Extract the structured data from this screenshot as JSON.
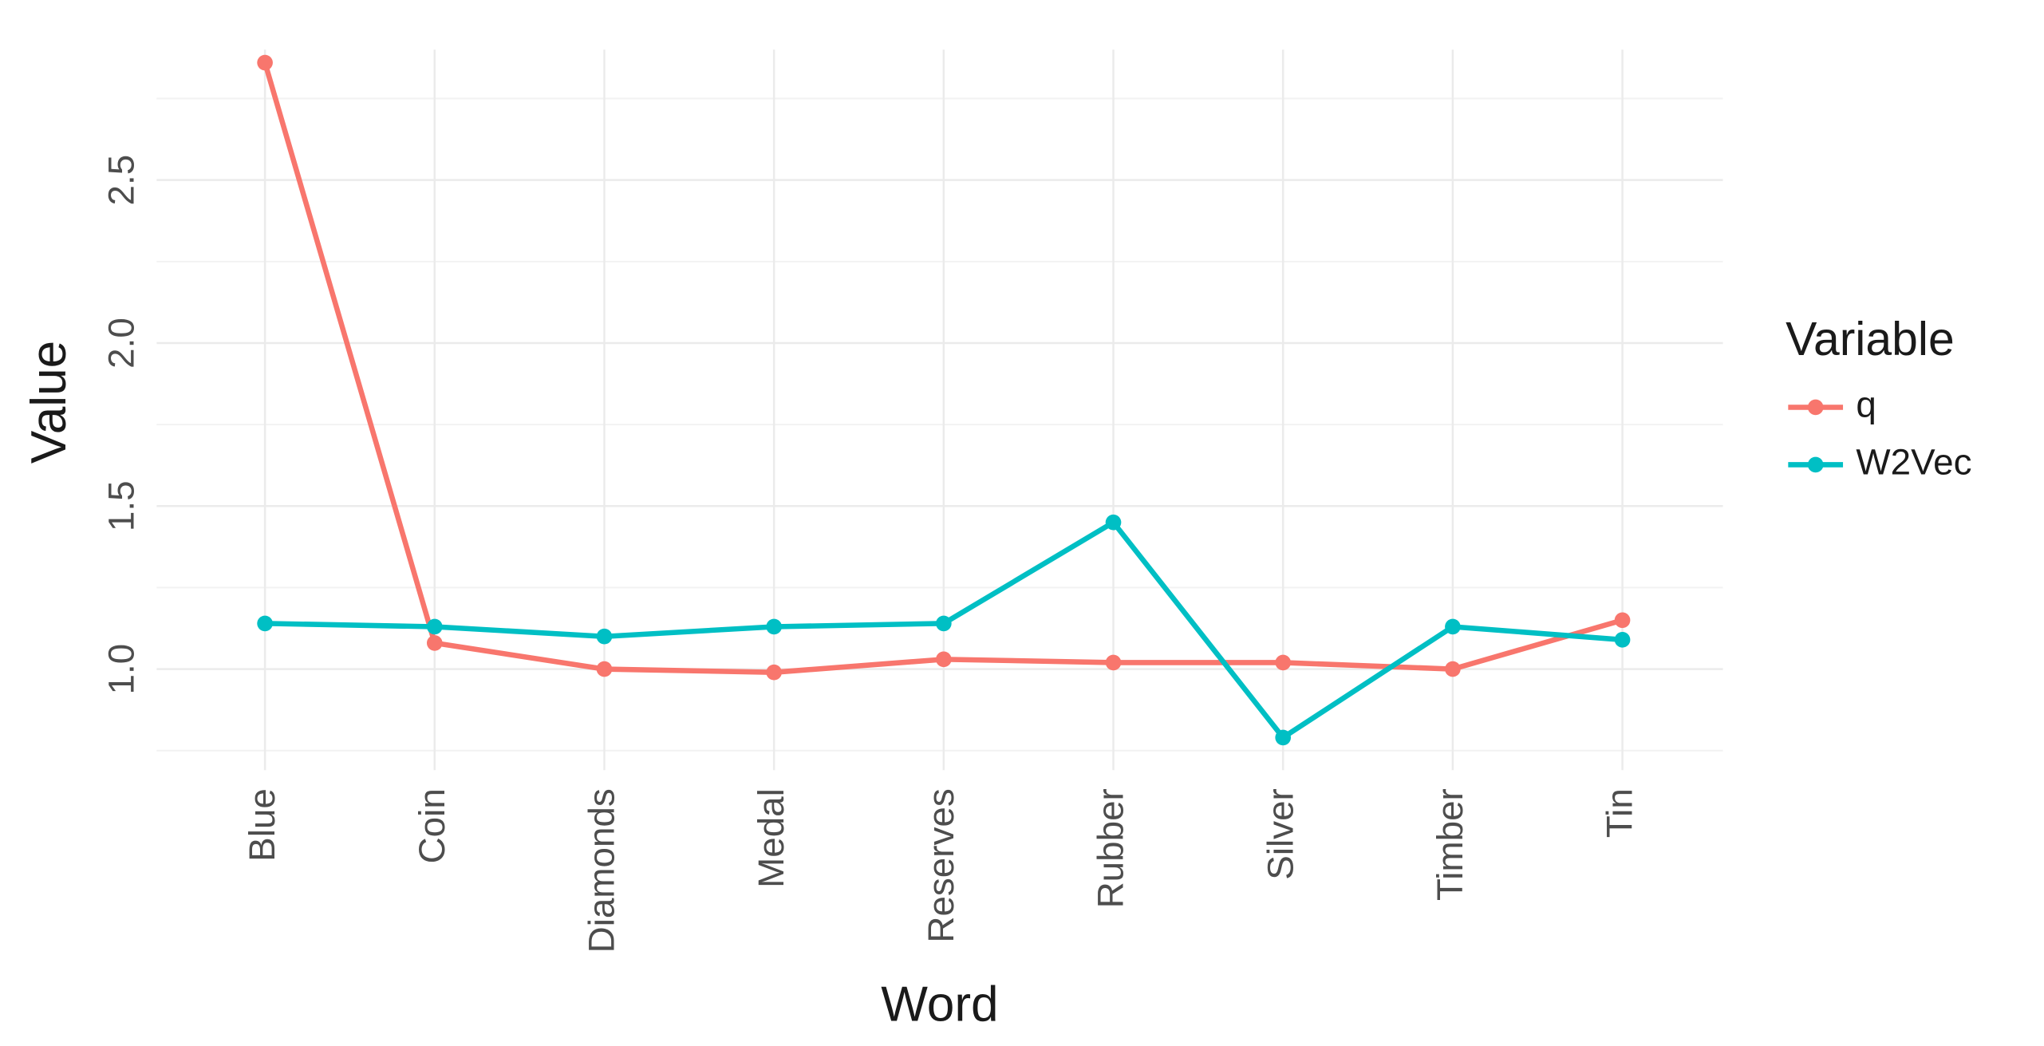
{
  "chart_data": {
    "type": "line",
    "x_label": "Word",
    "y_label": "Value",
    "categories": [
      "Blue",
      "Coin",
      "Diamonds",
      "Medal",
      "Reserves",
      "Rubber",
      "Silver",
      "Timber",
      "Tin"
    ],
    "series": [
      {
        "name": "q",
        "color": "#F8766D",
        "values": [
          2.86,
          1.08,
          1.0,
          0.99,
          1.03,
          1.02,
          1.02,
          1.0,
          1.15
        ]
      },
      {
        "name": "W2Vec",
        "color": "#00BFC4",
        "values": [
          1.14,
          1.13,
          1.1,
          1.13,
          1.14,
          1.45,
          0.79,
          1.13,
          1.09
        ]
      }
    ],
    "ylim": [
      0.69,
      2.9
    ],
    "yticks": [
      {
        "value": 1.0,
        "label": "1.0"
      },
      1.5,
      {
        "value": 2.0,
        "label": "2.0"
      },
      2.5
    ],
    "minor_yticks": [
      0.75,
      1.25,
      1.75,
      2.25,
      2.75
    ],
    "grid": true,
    "legend_title": "Variable",
    "legend_position": "right"
  }
}
